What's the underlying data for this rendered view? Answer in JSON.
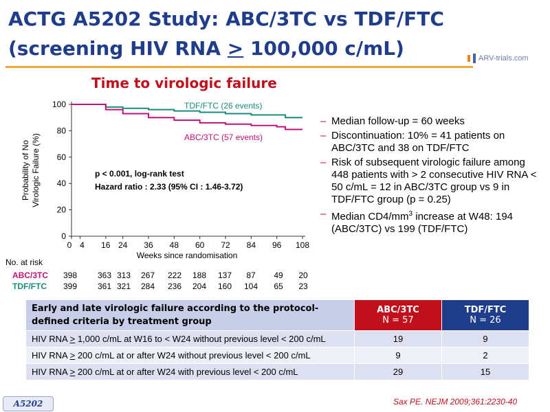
{
  "header": {
    "title_line1": "ACTG A5202 Study: ABC/3TC vs TDF/FTC",
    "title_line2_pre": "(screening HIV RNA ",
    "title_line2_sym": ">",
    "title_line2_post": " 100,000 c/mL)",
    "logo_text": "ARV-trials.com"
  },
  "chart_data": {
    "type": "line",
    "title": "Time to virologic failure",
    "xlabel": "Weeks since randomisation",
    "ylabel_line1": "Probability of No",
    "ylabel_line2": "Virologic Failure (%)",
    "xlim": [
      0,
      108
    ],
    "ylim": [
      0,
      100
    ],
    "x_ticks": [
      0,
      4,
      16,
      24,
      36,
      48,
      60,
      72,
      84,
      96,
      108
    ],
    "y_ticks": [
      0,
      20,
      40,
      60,
      80,
      100
    ],
    "series": [
      {
        "name": "TDF/FTC (26 events)",
        "color": "#1a8a7c",
        "steps": [
          [
            0,
            100
          ],
          [
            16,
            98
          ],
          [
            24,
            97
          ],
          [
            36,
            96
          ],
          [
            48,
            95
          ],
          [
            60,
            94
          ],
          [
            72,
            93
          ],
          [
            84,
            92
          ],
          [
            96,
            92
          ],
          [
            100,
            90
          ],
          [
            108,
            90
          ]
        ]
      },
      {
        "name": "ABC/3TC (57 events)",
        "color": "#c0127a",
        "steps": [
          [
            0,
            100
          ],
          [
            16,
            96
          ],
          [
            24,
            93
          ],
          [
            36,
            90
          ],
          [
            48,
            88
          ],
          [
            60,
            86
          ],
          [
            72,
            85
          ],
          [
            84,
            84
          ],
          [
            96,
            83
          ],
          [
            100,
            81
          ],
          [
            108,
            81
          ]
        ]
      }
    ],
    "annotation_p": "p < 0.001, log-rank test",
    "annotation_hr": "Hazard ratio : 2.33 (95% CI : 1.46-3.72)",
    "risk_table": {
      "label": "No. at risk",
      "weeks": [
        0,
        16,
        24,
        36,
        48,
        60,
        72,
        84,
        96,
        108
      ],
      "rows": [
        {
          "name": "ABC/3TC",
          "color": "#c0127a",
          "values": [
            "398",
            "363",
            "313",
            "267",
            "222",
            "188",
            "137",
            "87",
            "49",
            "20"
          ]
        },
        {
          "name": "TDF/FTC",
          "color": "#1a8a7c",
          "values": [
            "399",
            "361",
            "321",
            "284",
            "236",
            "204",
            "160",
            "104",
            "65",
            "23"
          ]
        }
      ]
    }
  },
  "bullets": [
    "Median follow-up = 60 weeks",
    "Discontinuation: 10% = 41 patients on ABC/3TC and 38 on TDF/FTC",
    "Risk of subsequent virologic failure among 448 patients with > 2 consecutive HIV RNA < 50 c/mL = 12 in ABC/3TC group vs 9 in TDF/FTC group (p = 0.25)"
  ],
  "bullet_cd4": {
    "pre": "Median CD4/mm",
    "sup": "3",
    "post": " increase at W48: 194 (ABC/3TC) vs 199 (TDF/FTC)"
  },
  "criteria_table": {
    "header_label": "Early and late virologic failure according to the protocol-defined criteria by treatment group",
    "col1": {
      "name": "ABC/3TC",
      "n": "N = 57"
    },
    "col2": {
      "name": "TDF/FTC",
      "n": "N = 26"
    },
    "rows": [
      {
        "label": "HIV RNA > 1,000 c/mL at W16 to < W24 without previous level < 200 c/mL",
        "abc": "19",
        "tdf": "9"
      },
      {
        "label": "HIV RNA > 200 c/mL at or after W24 without previous level < 200 c/mL",
        "abc": "9",
        "tdf": "2"
      },
      {
        "label": "HIV RNA > 200 c/mL at or after W24 with previous level < 200 c/mL",
        "abc": "29",
        "tdf": "15"
      }
    ]
  },
  "footer": {
    "study_tag": "A5202",
    "source": "Sax PE. NEJM 2009;361:2230-40"
  }
}
